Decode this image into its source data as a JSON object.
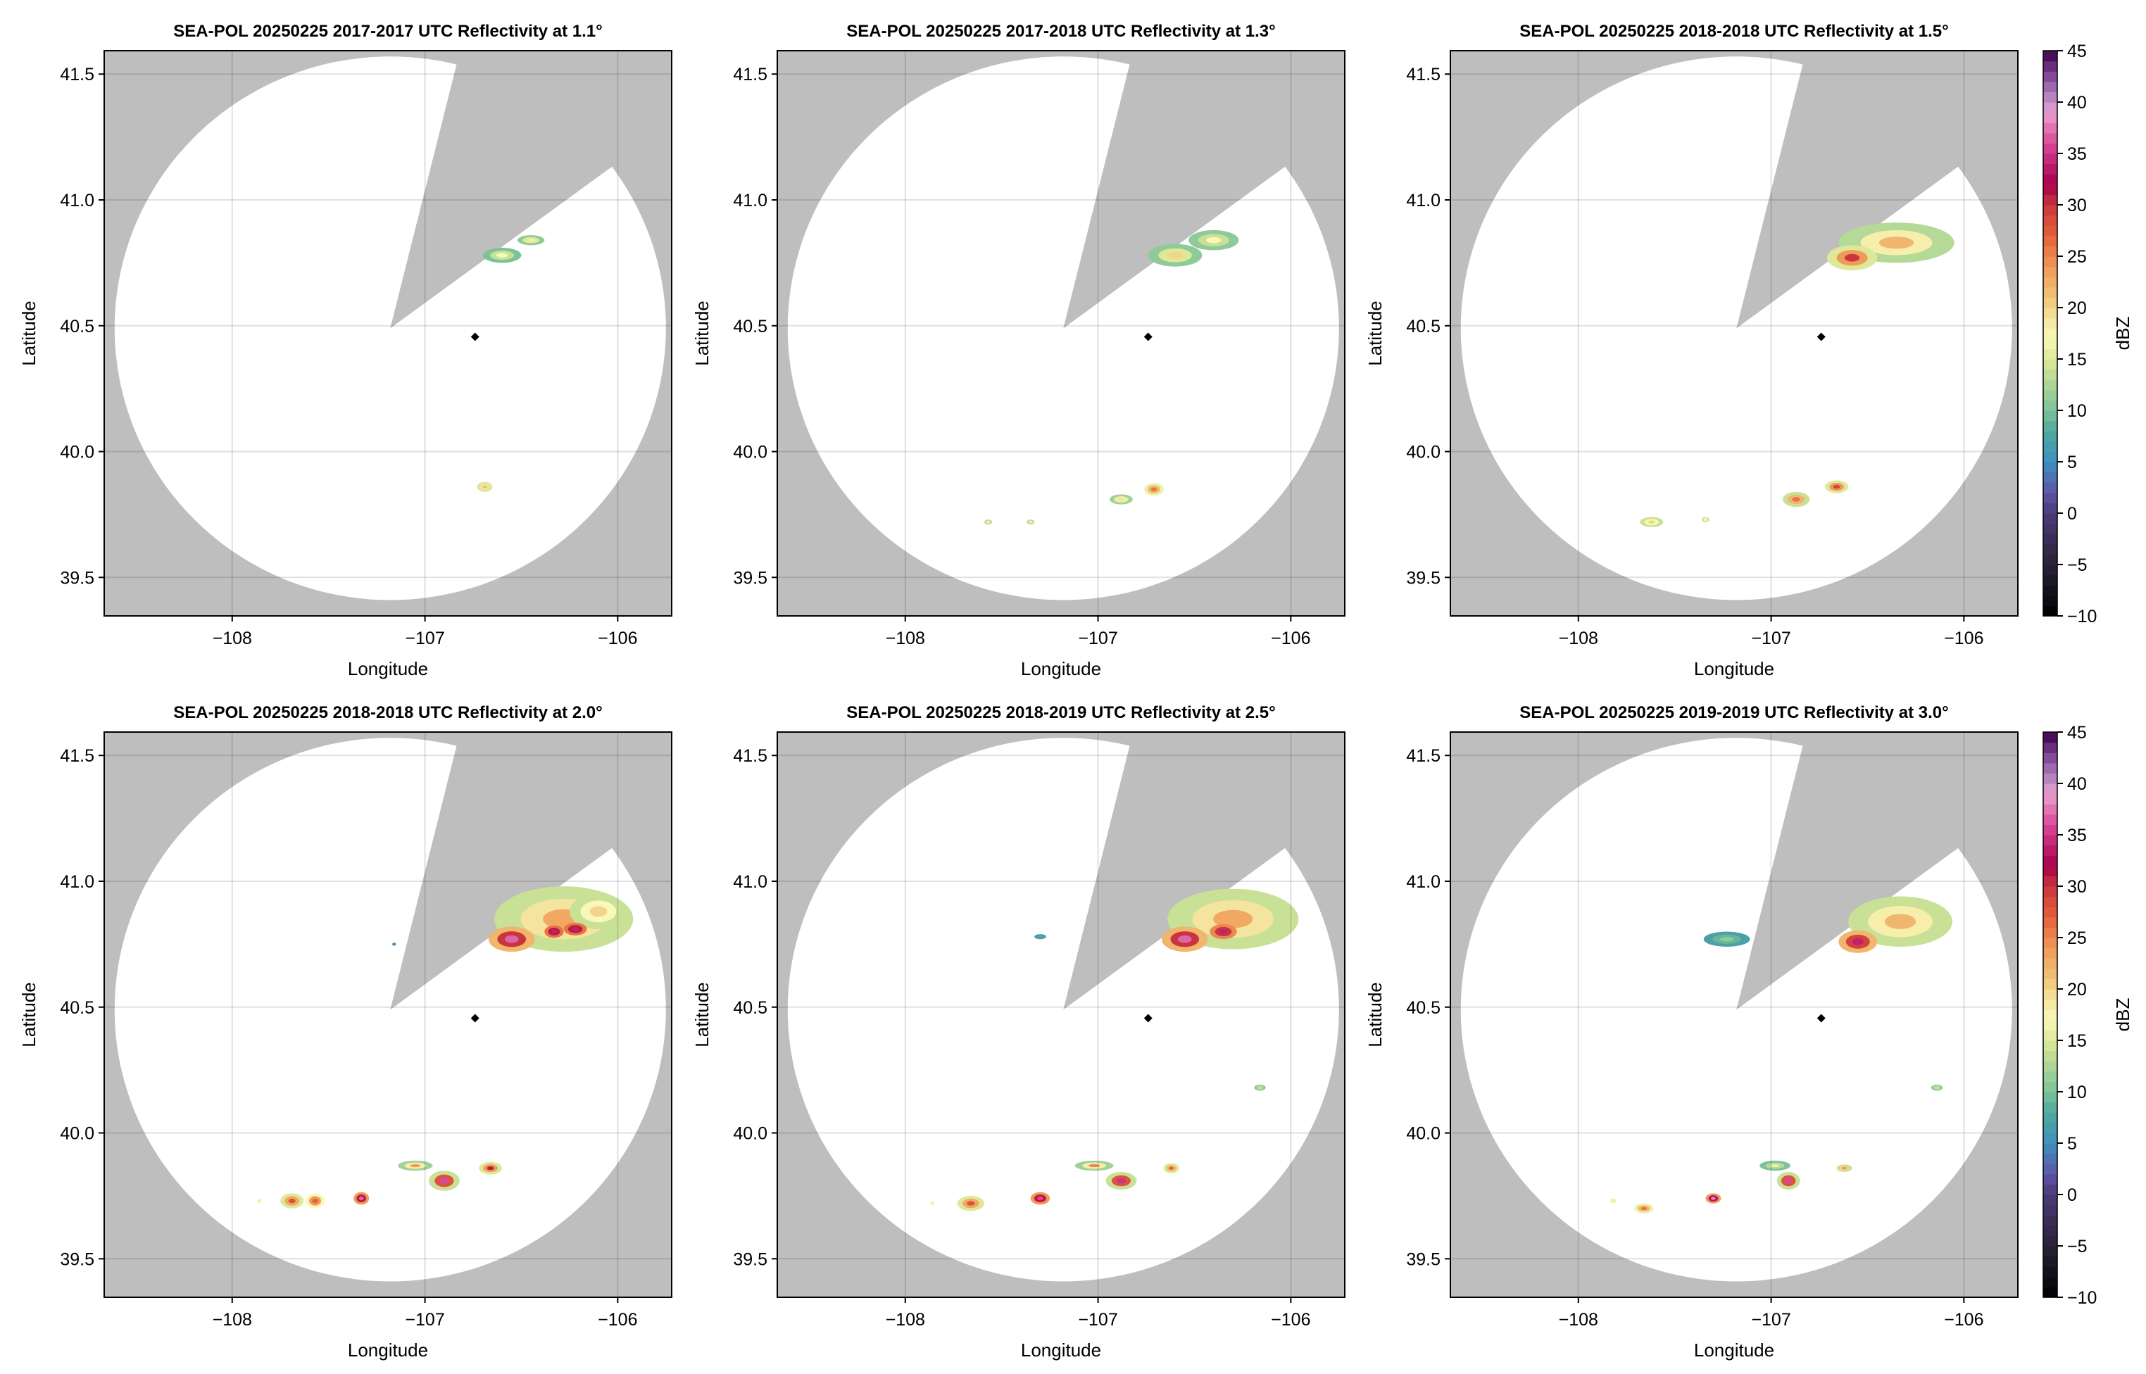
{
  "chart_data": {
    "type": "heatmap",
    "shared": {
      "xlabel": "Longitude",
      "ylabel": "Latitude",
      "xlim": [
        -108.664,
        -105.72
      ],
      "ylim": [
        39.347,
        41.593
      ],
      "xticks": [
        -108,
        -107,
        -106
      ],
      "xtick_labels": [
        "−108",
        "−107",
        "−106"
      ],
      "yticks": [
        39.5,
        40.0,
        40.5,
        41.0,
        41.5
      ],
      "ytick_labels": [
        "39.5",
        "40.0",
        "40.5",
        "41.0",
        "41.5"
      ],
      "grid": true,
      "radar_lon": -107.18,
      "radar_lat": 40.49,
      "range_deg_lon": 1.43,
      "range_deg_lat": 1.08,
      "blocked_sector_edges": [
        [
          -106.836,
          41.538
        ],
        [
          -106.057,
          41.117
        ]
      ],
      "site_marker": [
        -106.74,
        40.456
      ],
      "mask_color": "#bebebe"
    },
    "colorbar": {
      "label": "dBZ",
      "range": [
        -10,
        45
      ],
      "ticks": [
        -10,
        -5,
        0,
        5,
        10,
        15,
        20,
        25,
        30,
        35,
        40,
        45
      ],
      "tick_labels": [
        "−10",
        "−5",
        "0",
        "5",
        "10",
        "15",
        "20",
        "25",
        "30",
        "35",
        "40",
        "45"
      ],
      "stops": [
        [
          -10,
          "#000000"
        ],
        [
          -5,
          "#2a2238"
        ],
        [
          0,
          "#4a3a78"
        ],
        [
          2,
          "#5f55a5"
        ],
        [
          5,
          "#3f8fc0"
        ],
        [
          8,
          "#4faa9c"
        ],
        [
          10,
          "#7cc29a"
        ],
        [
          13,
          "#b5d996"
        ],
        [
          15,
          "#dde996"
        ],
        [
          17,
          "#f8f8b8"
        ],
        [
          19,
          "#f5e4a0"
        ],
        [
          21,
          "#f1c477"
        ],
        [
          24,
          "#ef9a58"
        ],
        [
          27,
          "#e6603c"
        ],
        [
          30,
          "#c9353e"
        ],
        [
          32,
          "#a8004c"
        ],
        [
          34,
          "#c02270"
        ],
        [
          36,
          "#d8489a"
        ],
        [
          38,
          "#e682b6"
        ],
        [
          39,
          "#e6a2d2"
        ],
        [
          41,
          "#a77ab8"
        ],
        [
          43,
          "#7a3a8e"
        ],
        [
          45,
          "#3a0048"
        ]
      ]
    },
    "panels": [
      {
        "title": "SEA-POL 20250225 2017-2017 UTC Reflectivity at 1.1°",
        "echoes": [
          {
            "lon": -106.6,
            "lat": 40.78,
            "rlon": 0.1,
            "rlat": 0.03,
            "dbz": [
              10,
              14,
              17
            ]
          },
          {
            "lon": -106.45,
            "lat": 40.84,
            "rlon": 0.07,
            "rlat": 0.02,
            "dbz": [
              11,
              15,
              18
            ]
          },
          {
            "lon": -106.69,
            "lat": 39.86,
            "rlon": 0.04,
            "rlat": 0.02,
            "dbz": [
              15,
              19,
              21
            ]
          }
        ]
      },
      {
        "title": "SEA-POL 20250225 2017-2018 UTC Reflectivity at 1.3°",
        "echoes": [
          {
            "lon": -106.6,
            "lat": 40.78,
            "rlon": 0.14,
            "rlat": 0.045,
            "dbz": [
              11,
              15,
              20
            ]
          },
          {
            "lon": -106.4,
            "lat": 40.84,
            "rlon": 0.13,
            "rlat": 0.04,
            "dbz": [
              11,
              14,
              17
            ]
          },
          {
            "lon": -106.71,
            "lat": 39.85,
            "rlon": 0.05,
            "rlat": 0.025,
            "dbz": [
              16,
              22,
              26
            ]
          },
          {
            "lon": -106.88,
            "lat": 39.81,
            "rlon": 0.06,
            "rlat": 0.02,
            "dbz": [
              12,
              16,
              19
            ]
          },
          {
            "lon": -107.57,
            "lat": 39.72,
            "rlon": 0.02,
            "rlat": 0.01,
            "dbz": [
              13,
              15,
              16
            ]
          },
          {
            "lon": -107.35,
            "lat": 39.72,
            "rlon": 0.02,
            "rlat": 0.01,
            "dbz": [
              13,
              15,
              16
            ]
          }
        ]
      },
      {
        "title": "SEA-POL 20250225 2018-2018 UTC Reflectivity at 1.5°",
        "echoes": [
          {
            "lon": -106.35,
            "lat": 40.83,
            "rlon": 0.3,
            "rlat": 0.08,
            "dbz": [
              13,
              18,
              22
            ]
          },
          {
            "lon": -106.58,
            "lat": 40.77,
            "rlon": 0.13,
            "rlat": 0.05,
            "dbz": [
              15,
              24,
              30
            ]
          },
          {
            "lon": -106.66,
            "lat": 39.86,
            "rlon": 0.06,
            "rlat": 0.025,
            "dbz": [
              15,
              24,
              29
            ]
          },
          {
            "lon": -106.87,
            "lat": 39.81,
            "rlon": 0.07,
            "rlat": 0.03,
            "dbz": [
              14,
              22,
              26
            ]
          },
          {
            "lon": -107.62,
            "lat": 39.72,
            "rlon": 0.06,
            "rlat": 0.02,
            "dbz": [
              14,
              17,
              20
            ]
          },
          {
            "lon": -107.34,
            "lat": 39.73,
            "rlon": 0.02,
            "rlat": 0.01,
            "dbz": [
              14,
              16,
              17
            ]
          }
        ]
      },
      {
        "title": "SEA-POL 20250225 2018-2018 UTC Reflectivity at 2.0°",
        "echoes": [
          {
            "lon": -106.28,
            "lat": 40.85,
            "rlon": 0.36,
            "rlat": 0.13,
            "dbz": [
              14,
              19,
              23
            ]
          },
          {
            "lon": -106.1,
            "lat": 40.88,
            "rlon": 0.15,
            "rlat": 0.07,
            "dbz": [
              14,
              17,
              20
            ]
          },
          {
            "lon": -106.55,
            "lat": 40.77,
            "rlon": 0.12,
            "rlat": 0.05,
            "dbz": [
              22,
              30,
              37
            ]
          },
          {
            "lon": -106.33,
            "lat": 40.8,
            "rlon": 0.05,
            "rlat": 0.025,
            "dbz": [
              26,
              31,
              34
            ]
          },
          {
            "lon": -106.22,
            "lat": 40.81,
            "rlon": 0.06,
            "rlat": 0.025,
            "dbz": [
              26,
              31,
              34
            ]
          },
          {
            "lon": -107.16,
            "lat": 40.75,
            "rlon": 0.01,
            "rlat": 0.006,
            "dbz": [
              5,
              5,
              5
            ]
          },
          {
            "lon": -107.69,
            "lat": 39.73,
            "rlon": 0.06,
            "rlat": 0.03,
            "dbz": [
              15,
              23,
              28
            ]
          },
          {
            "lon": -107.57,
            "lat": 39.73,
            "rlon": 0.05,
            "rlat": 0.03,
            "dbz": [
              17,
              24,
              27
            ]
          },
          {
            "lon": -107.33,
            "lat": 39.74,
            "rlon": 0.04,
            "rlat": 0.025,
            "dbz": [
              24,
              31,
              37
            ]
          },
          {
            "lon": -106.9,
            "lat": 39.81,
            "rlon": 0.08,
            "rlat": 0.04,
            "dbz": [
              14,
              28,
              36
            ]
          },
          {
            "lon": -106.66,
            "lat": 39.86,
            "rlon": 0.06,
            "rlat": 0.025,
            "dbz": [
              15,
              24,
              31
            ]
          },
          {
            "lon": -107.05,
            "lat": 39.87,
            "rlon": 0.09,
            "rlat": 0.02,
            "dbz": [
              12,
              18,
              24
            ]
          },
          {
            "lon": -107.86,
            "lat": 39.73,
            "rlon": 0.01,
            "rlat": 0.008,
            "dbz": [
              16,
              17,
              18
            ]
          }
        ]
      },
      {
        "title": "SEA-POL 20250225 2018-2019 UTC Reflectivity at 2.5°",
        "echoes": [
          {
            "lon": -106.3,
            "lat": 40.85,
            "rlon": 0.34,
            "rlat": 0.12,
            "dbz": [
              14,
              19,
              23
            ]
          },
          {
            "lon": -106.55,
            "lat": 40.77,
            "rlon": 0.12,
            "rlat": 0.05,
            "dbz": [
              22,
              30,
              37
            ]
          },
          {
            "lon": -106.35,
            "lat": 40.8,
            "rlon": 0.07,
            "rlat": 0.03,
            "dbz": [
              25,
              30,
              34
            ]
          },
          {
            "lon": -107.3,
            "lat": 40.78,
            "rlon": 0.03,
            "rlat": 0.01,
            "dbz": [
              6,
              7,
              8
            ]
          },
          {
            "lon": -106.16,
            "lat": 40.18,
            "rlon": 0.03,
            "rlat": 0.012,
            "dbz": [
              11,
              13,
              14
            ]
          },
          {
            "lon": -107.66,
            "lat": 39.72,
            "rlon": 0.07,
            "rlat": 0.03,
            "dbz": [
              15,
              23,
              28
            ]
          },
          {
            "lon": -107.3,
            "lat": 39.74,
            "rlon": 0.05,
            "rlat": 0.025,
            "dbz": [
              24,
              31,
              36
            ]
          },
          {
            "lon": -106.88,
            "lat": 39.81,
            "rlon": 0.08,
            "rlat": 0.035,
            "dbz": [
              14,
              28,
              35
            ]
          },
          {
            "lon": -106.62,
            "lat": 39.86,
            "rlon": 0.04,
            "rlat": 0.02,
            "dbz": [
              15,
              22,
              27
            ]
          },
          {
            "lon": -107.02,
            "lat": 39.87,
            "rlon": 0.1,
            "rlat": 0.02,
            "dbz": [
              12,
              18,
              25
            ]
          },
          {
            "lon": -107.86,
            "lat": 39.72,
            "rlon": 0.01,
            "rlat": 0.008,
            "dbz": [
              16,
              17,
              18
            ]
          }
        ]
      },
      {
        "title": "SEA-POL 20250225 2019-2019 UTC Reflectivity at 3.0°",
        "echoes": [
          {
            "lon": -106.33,
            "lat": 40.84,
            "rlon": 0.27,
            "rlat": 0.1,
            "dbz": [
              14,
              18,
              22
            ]
          },
          {
            "lon": -106.55,
            "lat": 40.76,
            "rlon": 0.1,
            "rlat": 0.045,
            "dbz": [
              22,
              29,
              34
            ]
          },
          {
            "lon": -107.23,
            "lat": 40.77,
            "rlon": 0.12,
            "rlat": 0.03,
            "dbz": [
              7,
              9,
              11
            ]
          },
          {
            "lon": -106.14,
            "lat": 40.18,
            "rlon": 0.03,
            "rlat": 0.012,
            "dbz": [
              11,
              13,
              14
            ]
          },
          {
            "lon": -106.91,
            "lat": 39.81,
            "rlon": 0.06,
            "rlat": 0.035,
            "dbz": [
              14,
              28,
              36
            ]
          },
          {
            "lon": -107.3,
            "lat": 39.74,
            "rlon": 0.04,
            "rlat": 0.02,
            "dbz": [
              24,
              33,
              38
            ]
          },
          {
            "lon": -107.66,
            "lat": 39.7,
            "rlon": 0.05,
            "rlat": 0.02,
            "dbz": [
              16,
              22,
              26
            ]
          },
          {
            "lon": -106.62,
            "lat": 39.86,
            "rlon": 0.04,
            "rlat": 0.015,
            "dbz": [
              14,
              20,
              24
            ]
          },
          {
            "lon": -106.98,
            "lat": 39.87,
            "rlon": 0.08,
            "rlat": 0.02,
            "dbz": [
              10,
              13,
              16
            ]
          },
          {
            "lon": -107.82,
            "lat": 39.73,
            "rlon": 0.015,
            "rlat": 0.01,
            "dbz": [
              16,
              17,
              18
            ]
          }
        ]
      }
    ]
  }
}
